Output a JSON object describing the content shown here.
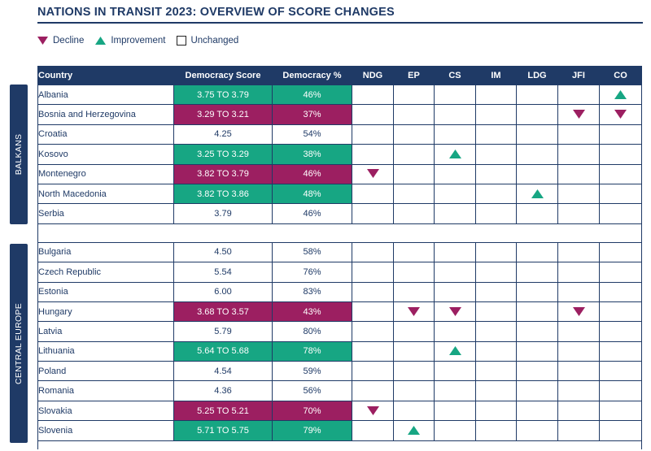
{
  "title": "NATIONS IN TRANSIT 2023: OVERVIEW OF SCORE CHANGES",
  "legend": {
    "decline": "Decline",
    "improvement": "Improvement",
    "unchanged": "Unchanged"
  },
  "colors": {
    "navy": "#1f3a66",
    "improve": "#17a683",
    "decline": "#9c1f61"
  },
  "headers": [
    "Country",
    "Democracy Score",
    "Democracy %",
    "NDG",
    "EP",
    "CS",
    "IM",
    "LDG",
    "JFI",
    "CO"
  ],
  "indicator_keys": [
    "NDG",
    "EP",
    "CS",
    "IM",
    "LDG",
    "JFI",
    "CO"
  ],
  "regions": [
    {
      "name": "BALKANS",
      "rows": [
        {
          "country": "Albania",
          "score": "3.75 TO 3.79",
          "pct": "46%",
          "status": "improve",
          "changes": {
            "CO": "up"
          }
        },
        {
          "country": "Bosnia and Herzegovina",
          "score": "3.29 TO 3.21",
          "pct": "37%",
          "status": "decline",
          "changes": {
            "JFI": "down",
            "CO": "down"
          }
        },
        {
          "country": "Croatia",
          "score": "4.25",
          "pct": "54%",
          "status": "unchanged",
          "changes": {}
        },
        {
          "country": "Kosovo",
          "score": "3.25 TO 3.29",
          "pct": "38%",
          "status": "improve",
          "changes": {
            "CS": "up"
          }
        },
        {
          "country": "Montenegro",
          "score": "3.82 TO 3.79",
          "pct": "46%",
          "status": "decline",
          "changes": {
            "NDG": "down"
          }
        },
        {
          "country": "North Macedonia",
          "score": "3.82 TO 3.86",
          "pct": "48%",
          "status": "improve",
          "changes": {
            "LDG": "up"
          }
        },
        {
          "country": "Serbia",
          "score": "3.79",
          "pct": "46%",
          "status": "unchanged",
          "changes": {}
        }
      ]
    },
    {
      "name": "CENTRAL EUROPE",
      "rows": [
        {
          "country": "Bulgaria",
          "score": "4.50",
          "pct": "58%",
          "status": "unchanged",
          "changes": {}
        },
        {
          "country": "Czech Republic",
          "score": "5.54",
          "pct": "76%",
          "status": "unchanged",
          "changes": {}
        },
        {
          "country": "Estonia",
          "score": "6.00",
          "pct": "83%",
          "status": "unchanged",
          "changes": {}
        },
        {
          "country": "Hungary",
          "score": "3.68 TO 3.57",
          "pct": "43%",
          "status": "decline",
          "changes": {
            "EP": "down",
            "CS": "down",
            "JFI": "down"
          }
        },
        {
          "country": "Latvia",
          "score": "5.79",
          "pct": "80%",
          "status": "unchanged",
          "changes": {}
        },
        {
          "country": "Lithuania",
          "score": "5.64 TO 5.68",
          "pct": "78%",
          "status": "improve",
          "changes": {
            "CS": "up"
          }
        },
        {
          "country": "Poland",
          "score": "4.54",
          "pct": "59%",
          "status": "unchanged",
          "changes": {}
        },
        {
          "country": "Romania",
          "score": "4.36",
          "pct": "56%",
          "status": "unchanged",
          "changes": {}
        },
        {
          "country": "Slovakia",
          "score": "5.25 TO 5.21",
          "pct": "70%",
          "status": "decline",
          "changes": {
            "NDG": "down"
          }
        },
        {
          "country": "Slovenia",
          "score": "5.71 TO 5.75",
          "pct": "79%",
          "status": "improve",
          "changes": {
            "EP": "up"
          }
        }
      ]
    }
  ]
}
